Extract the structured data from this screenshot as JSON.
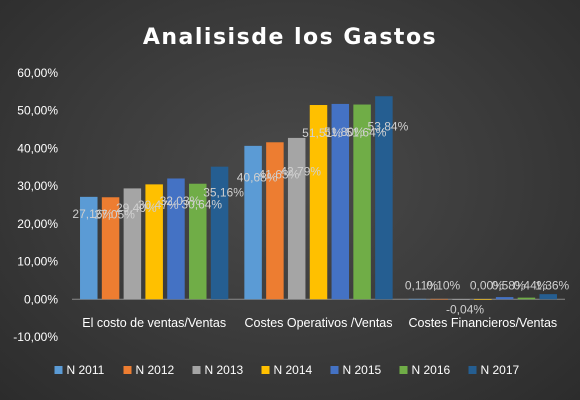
{
  "chart_data": {
    "type": "bar",
    "title": "Analisisde los Gastos",
    "categories": [
      "El costo de ventas/Ventas",
      "Costes Operativos /Ventas",
      "Costes Financieros/Ventas"
    ],
    "series": [
      {
        "name": "N 2011",
        "color": "#5b9bd5",
        "values": [
          27.16,
          40.68,
          0.11
        ],
        "labels": [
          "27,16%",
          "40,68%",
          "0,11%"
        ]
      },
      {
        "name": "N 2012",
        "color": "#ed7d31",
        "values": [
          27.05,
          41.63,
          0.1
        ],
        "labels": [
          "27,05%",
          "41,63%",
          "0,10%"
        ]
      },
      {
        "name": "N 2013",
        "color": "#a5a5a5",
        "values": [
          29.4,
          42.79,
          -0.04
        ],
        "labels": [
          "29,40%",
          "42,79%",
          "-0,04%"
        ]
      },
      {
        "name": "N 2014",
        "color": "#ffc000",
        "values": [
          30.47,
          51.51,
          0.0
        ],
        "labels": [
          "30,47%",
          "51,51%",
          "0,00%"
        ]
      },
      {
        "name": "N 2015",
        "color": "#4472c4",
        "values": [
          32.03,
          51.8,
          0.58
        ],
        "labels": [
          "32,03%",
          "51,80%",
          "0,58%"
        ]
      },
      {
        "name": "N 2016",
        "color": "#70ad47",
        "values": [
          30.64,
          51.64,
          0.44
        ],
        "labels": [
          "30,64%",
          "51,64%",
          "0,44%"
        ]
      },
      {
        "name": "N 2017",
        "color": "#255e91",
        "values": [
          35.16,
          53.84,
          1.36
        ],
        "labels": [
          "35,16%",
          "53,84%",
          "1,36%"
        ]
      }
    ],
    "ylim": [
      -10,
      60
    ],
    "yticks": [
      "-10,00%",
      "0,00%",
      "10,00%",
      "20,00%",
      "30,00%",
      "40,00%",
      "50,00%",
      "60,00%"
    ],
    "ytick_values": [
      -10,
      0,
      10,
      20,
      30,
      40,
      50,
      60
    ],
    "grid": false,
    "legend": "bottom"
  }
}
